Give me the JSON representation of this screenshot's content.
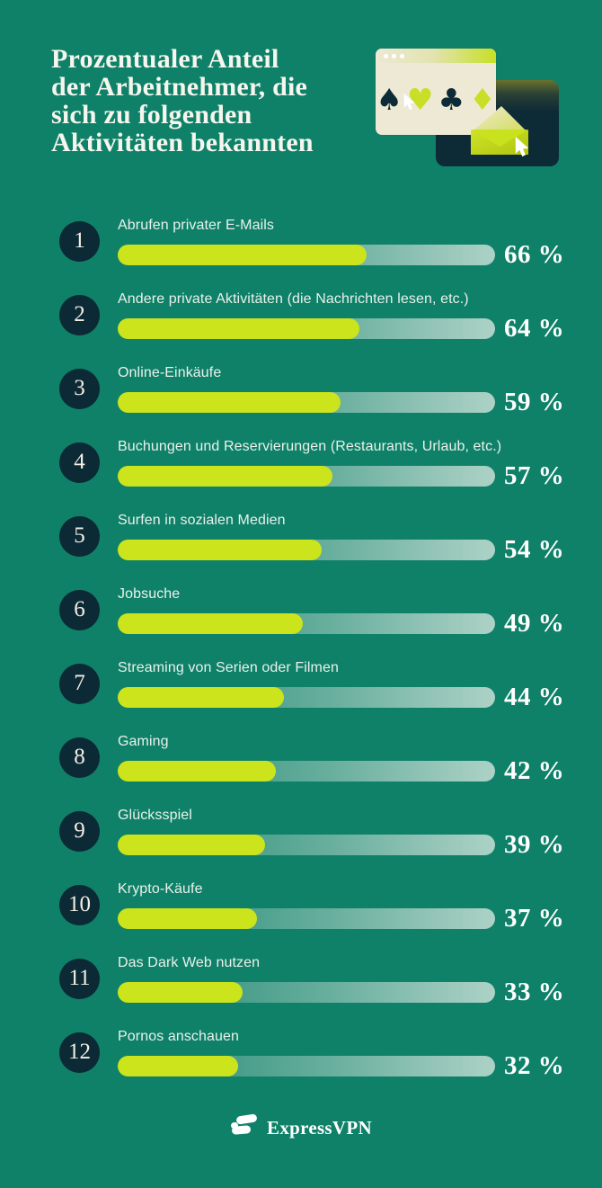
{
  "page": {
    "background": "#0F8168",
    "accent_lime": "#CBE41C",
    "navy": "#0C2936",
    "cream": "#EDE9D5",
    "track_end": "#B7CFC2"
  },
  "header": {
    "title": "Prozentualer Anteil\nder Arbeitnehmer, die\nsich zu folgenden\nAktivitäten bekannten"
  },
  "illustration": {
    "suits": {
      "spade": "♠",
      "heart": "♥",
      "club": "♣",
      "diamond": "♦"
    }
  },
  "chart_data": {
    "type": "bar",
    "orientation": "horizontal",
    "title": "Prozentualer Anteil der Arbeitnehmer, die sich zu folgenden Aktivitäten bekannten",
    "value_unit": "%",
    "xlim": [
      0,
      100
    ],
    "grid": false,
    "legend": false,
    "bar_color": "#CBE41C",
    "categories": [
      "Abrufen privater E-Mails",
      "Andere private Aktivitäten (die Nachrichten lesen, etc.)",
      "Online-Einkäufe",
      "Buchungen und Reservierungen (Restaurants, Urlaub, etc.)",
      "Surfen in sozialen Medien",
      "Jobsuche",
      "Streaming von Serien oder Filmen",
      "Gaming",
      "Glücksspiel",
      "Krypto-Käufe",
      "Das Dark Web nutzen",
      "Pornos anschauen"
    ],
    "values": [
      66,
      64,
      59,
      57,
      54,
      49,
      44,
      42,
      39,
      37,
      33,
      32
    ],
    "rows": [
      {
        "rank": "1",
        "label": "Abrufen privater E-Mails",
        "value": 66,
        "display": "66 %"
      },
      {
        "rank": "2",
        "label": "Andere private Aktivitäten (die Nachrichten lesen, etc.)",
        "value": 64,
        "display": "64 %"
      },
      {
        "rank": "3",
        "label": "Online-Einkäufe",
        "value": 59,
        "display": "59 %"
      },
      {
        "rank": "4",
        "label": "Buchungen und Reservierungen (Restaurants, Urlaub, etc.)",
        "value": 57,
        "display": "57 %"
      },
      {
        "rank": "5",
        "label": "Surfen in sozialen Medien",
        "value": 54,
        "display": "54 %"
      },
      {
        "rank": "6",
        "label": "Jobsuche",
        "value": 49,
        "display": "49 %"
      },
      {
        "rank": "7",
        "label": "Streaming von Serien oder Filmen",
        "value": 44,
        "display": "44 %"
      },
      {
        "rank": "8",
        "label": "Gaming",
        "value": 42,
        "display": "42 %"
      },
      {
        "rank": "9",
        "label": "Glücksspiel",
        "value": 39,
        "display": "39 %"
      },
      {
        "rank": "10",
        "label": "Krypto-Käufe",
        "value": 37,
        "display": "37 %"
      },
      {
        "rank": "11",
        "label": "Das Dark Web nutzen",
        "value": 33,
        "display": "33 %"
      },
      {
        "rank": "12",
        "label": "Pornos anschauen",
        "value": 32,
        "display": "32 %"
      }
    ]
  },
  "footer": {
    "brand": "ExpressVPN"
  }
}
